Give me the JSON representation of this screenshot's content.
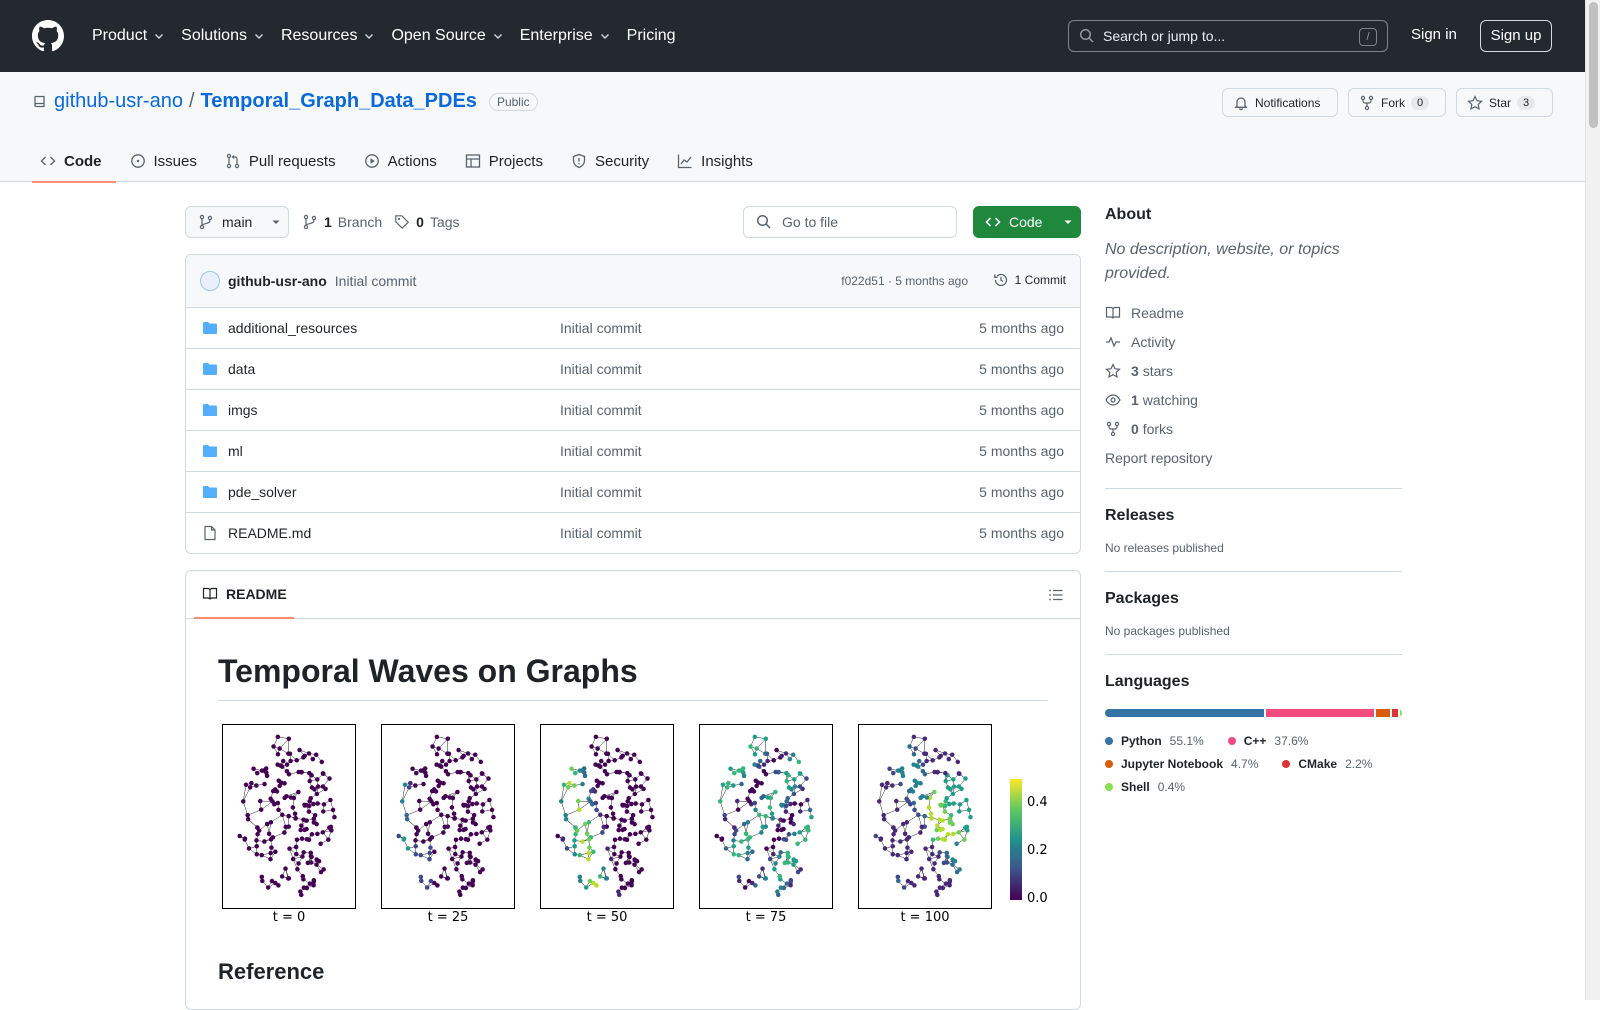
{
  "header": {
    "nav": [
      "Product",
      "Solutions",
      "Resources",
      "Open Source",
      "Enterprise",
      "Pricing"
    ],
    "search_placeholder": "Search or jump to...",
    "search_shortcut": "/",
    "sign_in": "Sign in",
    "sign_up": "Sign up"
  },
  "repo": {
    "owner": "github-usr-ano",
    "separator": "/",
    "name": "Temporal_Graph_Data_PDEs",
    "visibility": "Public",
    "notifications": "Notifications",
    "fork_label": "Fork",
    "fork_count": "0",
    "star_label": "Star",
    "star_count": "3"
  },
  "tabs": [
    "Code",
    "Issues",
    "Pull requests",
    "Actions",
    "Projects",
    "Security",
    "Insights"
  ],
  "toolbar": {
    "branch": "main",
    "branch_count": "1",
    "branch_label": "Branch",
    "tag_count": "0",
    "tag_label": "Tags",
    "go_to_file": "Go to file",
    "code_button": "Code"
  },
  "commit": {
    "user": "github-usr-ano",
    "message": "Initial commit",
    "hash_time": "f022d51 · 5 months ago",
    "count": "1 Commit"
  },
  "files": [
    {
      "name": "additional_resources",
      "type": "folder",
      "commit": "Initial commit",
      "time": "5 months ago"
    },
    {
      "name": "data",
      "type": "folder",
      "commit": "Initial commit",
      "time": "5 months ago"
    },
    {
      "name": "imgs",
      "type": "folder",
      "commit": "Initial commit",
      "time": "5 months ago"
    },
    {
      "name": "ml",
      "type": "folder",
      "commit": "Initial commit",
      "time": "5 months ago"
    },
    {
      "name": "pde_solver",
      "type": "folder",
      "commit": "Initial commit",
      "time": "5 months ago"
    },
    {
      "name": "README.md",
      "type": "file",
      "commit": "Initial commit",
      "time": "5 months ago"
    }
  ],
  "readme": {
    "tab_label": "README",
    "title": "Temporal Waves on Graphs",
    "figure_labels": [
      "t = 0",
      "t = 25",
      "t = 50",
      "t = 75",
      "t = 100"
    ],
    "colorbar_ticks": [
      "0.4",
      "0.2",
      "0.0"
    ],
    "section": "Reference"
  },
  "sidebar": {
    "about_title": "About",
    "about_desc": "No description, website, or topics provided.",
    "readme": "Readme",
    "activity": "Activity",
    "stars_count": "3",
    "stars_label": "stars",
    "watching_count": "1",
    "watching_label": "watching",
    "forks_count": "0",
    "forks_label": "forks",
    "report": "Report repository",
    "releases_title": "Releases",
    "releases_text": "No releases published",
    "packages_title": "Packages",
    "packages_text": "No packages published",
    "languages_title": "Languages",
    "languages": [
      {
        "name": "Python",
        "pct": "55.1%",
        "value": 55.1,
        "color": "#3572A5"
      },
      {
        "name": "C++",
        "pct": "37.6%",
        "value": 37.6,
        "color": "#f34b7d"
      },
      {
        "name": "Jupyter Notebook",
        "pct": "4.7%",
        "value": 4.7,
        "color": "#DA5B0B"
      },
      {
        "name": "CMake",
        "pct": "2.2%",
        "value": 2.2,
        "color": "#DA3434"
      },
      {
        "name": "Shell",
        "pct": "0.4%",
        "value": 0.4,
        "color": "#89e051"
      }
    ]
  }
}
